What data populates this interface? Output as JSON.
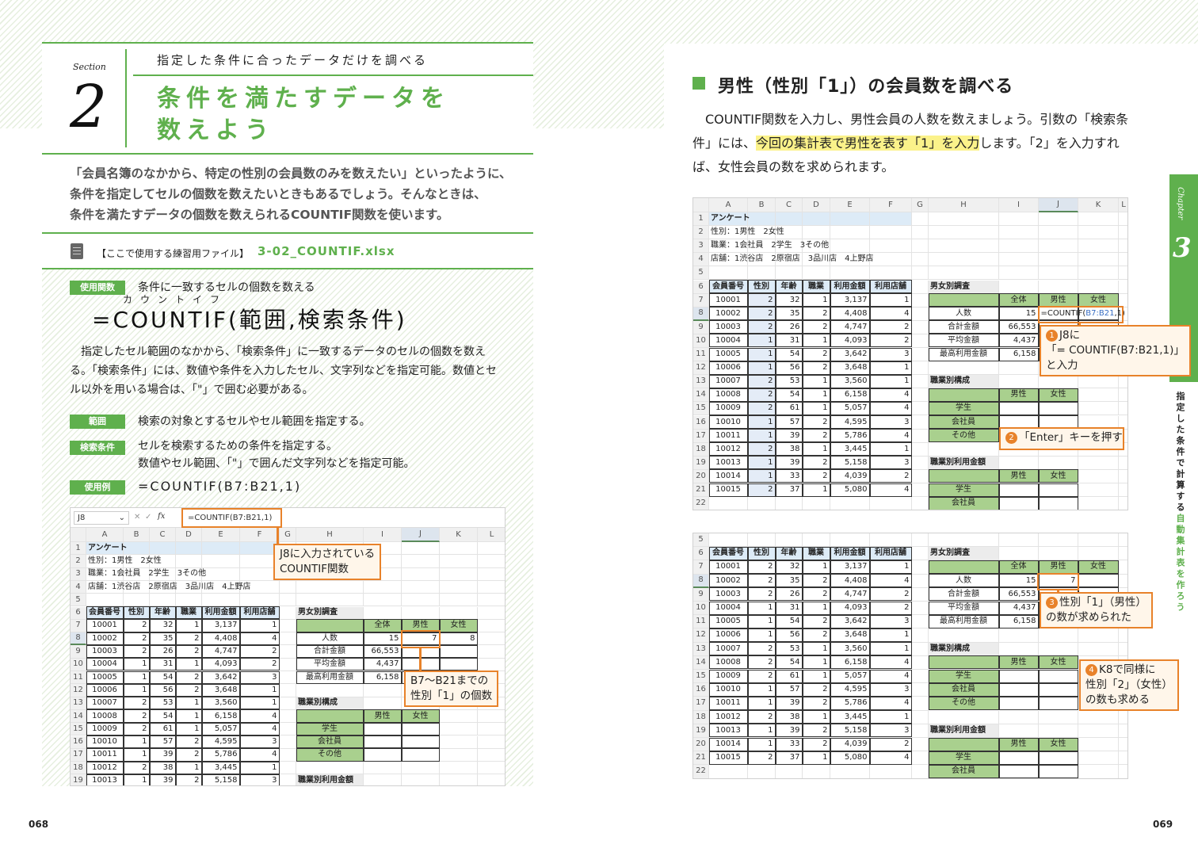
{
  "left_page": {
    "section_label": "Section",
    "section_number": "2",
    "subtitle": "指定した条件に合ったデータだけを調べる",
    "title_line1": "条件を満たすデータを",
    "title_line2": "数えよう",
    "intro": [
      "「会員名簿のなかから、特定の性別の会員数のみを数えたい」といったように、",
      "条件を指定してセルの個数を数えたいときもあるでしょう。そんなときは、",
      "条件を満たすデータの個数を数えられるCOUNTIF関数を使います。"
    ],
    "file_label": "【ここで使用する練習用ファイル】",
    "file_name": "3-02_COUNTIF.xlsx",
    "syntax": {
      "badge_function": "使用関数",
      "function_desc": "条件に一致するセルの個数を数える",
      "ruby": "カウントイフ",
      "formula": "=COUNTIF(範囲,検索条件)",
      "description": "指定したセル範囲のなかから、「検索条件」に一致するデータのセルの個数を数える。「検索条件」には、数値や条件を入力したセル、文字列などを指定可能。数値とセル以外を用いる場合は、「\"」で囲む必要がある。",
      "badge_range": "範囲",
      "range_desc": "検索の対象とするセルやセル範囲を指定する。",
      "badge_criteria": "検索条件",
      "criteria_desc1": "セルを検索するための条件を指定する。",
      "criteria_desc2": "数値やセル範囲、「\"」で囲んだ文字列などを指定可能。",
      "badge_example": "使用例",
      "example": "=COUNTIF(B7:B21,1)"
    },
    "callouts": {
      "formula_bar": [
        "J8に入力されている",
        "COUNTIF関数"
      ],
      "result": [
        "B7～B21までの",
        "性別「1」の個数"
      ]
    },
    "page_number": "068"
  },
  "right_page": {
    "heading": "男性（性別「1」）の会員数を調べる",
    "para_before": "COUNTIF関数を入力し、男性会員の人数を数えましょう。引数の「検索条件」には、",
    "para_highlight": "今回の集計表で男性を表す「1」を入力",
    "para_after": "します。「2」を入力すれば、女性会員の数を求められます。",
    "callouts": {
      "step1_num": "1",
      "step1": [
        "J8に",
        "「= COUNTIF(B7:B21,1)」",
        "と入力"
      ],
      "step2_num": "2",
      "step2": "「Enter」キーを押す",
      "step3_num": "3",
      "step3": [
        "性別「1」（男性）",
        "の数が求められた"
      ],
      "step4_num": "4",
      "step4": [
        "K8で同様に",
        "性別「2」（女性）",
        "の数も求める"
      ]
    },
    "chapter_label": "Chapter",
    "chapter_number": "3",
    "side_text_black": "指定した条件で計算する",
    "side_text_green": "自動集計表を作ろう",
    "page_number": "069"
  },
  "spreadsheet": {
    "name_box": "J8",
    "formula": "=COUNTIF(B7:B21,1)",
    "fx_icon": "fx",
    "columns": [
      "A",
      "B",
      "C",
      "D",
      "E",
      "F",
      "G",
      "H",
      "I",
      "J",
      "K",
      "L"
    ],
    "notes": [
      "アンケート",
      "性別：1男性　2女性",
      "職業：1会社員　2学生　3その他",
      "店舗：1渋谷店　2原宿店　3品川店　4上野店"
    ],
    "headers": [
      "会員番号",
      "性別",
      "年齢",
      "職業",
      "利用金額",
      "利用店舗"
    ],
    "members": [
      [
        "10001",
        "2",
        "32",
        "1",
        "3,137",
        "1"
      ],
      [
        "10002",
        "2",
        "35",
        "2",
        "4,408",
        "4"
      ],
      [
        "10003",
        "2",
        "26",
        "2",
        "4,747",
        "2"
      ],
      [
        "10004",
        "1",
        "31",
        "1",
        "4,093",
        "2"
      ],
      [
        "10005",
        "1",
        "54",
        "2",
        "3,642",
        "3"
      ],
      [
        "10006",
        "1",
        "56",
        "2",
        "3,648",
        "1"
      ],
      [
        "10007",
        "2",
        "53",
        "1",
        "3,560",
        "1"
      ],
      [
        "10008",
        "2",
        "54",
        "1",
        "6,158",
        "4"
      ],
      [
        "10009",
        "2",
        "61",
        "1",
        "5,057",
        "4"
      ],
      [
        "10010",
        "1",
        "57",
        "2",
        "4,595",
        "3"
      ],
      [
        "10011",
        "1",
        "39",
        "2",
        "5,786",
        "4"
      ],
      [
        "10012",
        "2",
        "38",
        "1",
        "3,445",
        "1"
      ],
      [
        "10013",
        "1",
        "39",
        "2",
        "5,158",
        "3"
      ],
      [
        "10014",
        "1",
        "33",
        "2",
        "4,039",
        "2"
      ],
      [
        "10015",
        "2",
        "37",
        "1",
        "5,080",
        "4"
      ]
    ],
    "gender_title": "男女別調査",
    "gender_cols": [
      "全体",
      "男性",
      "女性"
    ],
    "gender_rows": [
      "人数",
      "合計金額",
      "平均金額",
      "最高利用金額"
    ],
    "gender_totals": [
      "15",
      "66,553",
      "4,437",
      "6,158"
    ],
    "job_title": "職業別構成",
    "job_cols": [
      "男性",
      "女性"
    ],
    "job_rows": [
      "学生",
      "会社員",
      "その他"
    ],
    "job_amount_title": "職業別利用金額",
    "job_amount_rows": [
      "学生",
      "会社員"
    ],
    "sheets": {
      "left": {
        "j8": "7",
        "k8": "8"
      },
      "right_top": {
        "j8_prefix": "=COUNTIF(",
        "j8_ref": "B7:B21",
        "j8_suffix": ",1)"
      },
      "right_bottom": {
        "j8": "7"
      }
    }
  },
  "colors": {
    "accent_green": "#5fb04d",
    "callout_orange": "#e8822a",
    "highlight_yellow": "#fbf28a"
  }
}
